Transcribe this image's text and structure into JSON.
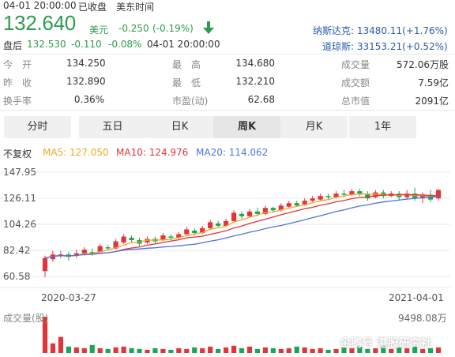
{
  "header": {
    "datetime": "04-01 20:00:00",
    "status": "已收盘",
    "timezone": "美东时间",
    "price": "132.640",
    "currency": "美元",
    "change": "-0.250",
    "change_pct": "(-0.19%)",
    "after_label": "盘后",
    "after_price": "132.530",
    "after_change": "-0.110",
    "after_pct": "-0.08%",
    "after_time": "04-01 20:00:00"
  },
  "indices": [
    {
      "name": "纳斯达克:",
      "value": "13480.11(+1.76%)"
    },
    {
      "name": "道琼斯:",
      "value": "33153.21(+0.52%)"
    }
  ],
  "stats": [
    [
      {
        "label": "今　开",
        "value": "134.250",
        "color": "red"
      },
      {
        "label": "最　高",
        "value": "134.680",
        "color": "red"
      },
      {
        "label": "成交量",
        "value": "572.06万股",
        "color": "normal"
      }
    ],
    [
      {
        "label": "昨　收",
        "value": "132.890",
        "color": "normal"
      },
      {
        "label": "最　低",
        "value": "132.210",
        "color": "green"
      },
      {
        "label": "成交额",
        "value": "7.59亿",
        "color": "normal"
      }
    ],
    [
      {
        "label": "换手率",
        "value": "0.36%",
        "color": "normal"
      },
      {
        "label": "市盈(动)",
        "value": "62.68",
        "color": "normal"
      },
      {
        "label": "总市值",
        "value": "2091亿",
        "color": "normal"
      }
    ]
  ],
  "tabs": [
    {
      "label": "分时",
      "active": false
    },
    {
      "label": "五日",
      "active": false
    },
    {
      "label": "日K",
      "active": false
    },
    {
      "label": "周K",
      "active": true
    },
    {
      "label": "月K",
      "active": false
    },
    {
      "label": "1年",
      "active": false
    }
  ],
  "ma_legend": {
    "adjust": "不复权",
    "ma5": "MA5: 127.050",
    "ma10": "MA10: 124.976",
    "ma20": "MA20: 114.062"
  },
  "colors": {
    "up": "#e2353b",
    "down": "#1aa55a",
    "ma5": "#f5a623",
    "ma10": "#e2353b",
    "ma20": "#4f74e3",
    "price": "#2e9c4c",
    "index": "#2a5caa"
  },
  "volume_label": "成交量(股)",
  "volume_max": "9498.08万",
  "watermark": "企鹅号 港股研究社",
  "chart_data": {
    "type": "candlestick",
    "x_start": "2020-03-27",
    "x_end": "2021-04-01",
    "yticks": [
      "147.95",
      "126.11",
      "104.26",
      "82.42",
      "60.58"
    ],
    "ylim": [
      60.58,
      147.95
    ],
    "candles": [
      [
        65,
        76,
        60,
        78
      ],
      [
        75,
        79,
        73,
        82
      ],
      [
        78,
        79,
        76,
        82
      ],
      [
        79,
        77,
        74,
        81
      ],
      [
        78,
        80,
        76,
        83
      ],
      [
        80,
        83,
        78,
        85
      ],
      [
        81,
        80,
        78,
        84
      ],
      [
        81,
        86,
        80,
        88
      ],
      [
        85,
        84,
        82,
        87
      ],
      [
        84,
        90,
        83,
        92
      ],
      [
        89,
        94,
        88,
        96
      ],
      [
        93,
        91,
        89,
        95
      ],
      [
        91,
        88,
        86,
        93
      ],
      [
        89,
        92,
        88,
        94
      ],
      [
        92,
        90,
        88,
        94
      ],
      [
        91,
        95,
        90,
        97
      ],
      [
        94,
        93,
        91,
        96
      ],
      [
        93,
        96,
        92,
        98
      ],
      [
        96,
        100,
        95,
        102
      ],
      [
        99,
        97,
        95,
        101
      ],
      [
        97,
        101,
        96,
        103
      ],
      [
        101,
        106,
        100,
        108
      ],
      [
        105,
        103,
        101,
        107
      ],
      [
        103,
        107,
        102,
        109
      ],
      [
        107,
        114,
        106,
        116
      ],
      [
        113,
        111,
        109,
        115
      ],
      [
        111,
        115,
        110,
        117
      ],
      [
        115,
        113,
        111,
        118
      ],
      [
        113,
        118,
        112,
        120
      ],
      [
        118,
        116,
        114,
        119
      ],
      [
        116,
        120,
        115,
        122
      ],
      [
        119,
        122,
        118,
        124
      ],
      [
        122,
        120,
        119,
        124
      ],
      [
        121,
        124,
        120,
        126
      ],
      [
        124,
        126,
        123,
        128
      ],
      [
        125,
        128,
        124,
        130
      ],
      [
        128,
        127,
        125,
        130
      ],
      [
        127,
        130,
        126,
        132
      ],
      [
        130,
        129,
        127,
        133
      ],
      [
        129,
        132,
        128,
        134
      ],
      [
        132,
        130,
        128,
        134
      ],
      [
        130,
        126,
        124,
        132
      ],
      [
        127,
        131,
        126,
        133
      ],
      [
        131,
        128,
        126,
        133
      ],
      [
        128,
        130,
        127,
        132
      ],
      [
        130,
        127,
        125,
        132
      ],
      [
        127,
        130,
        125,
        133
      ],
      [
        130,
        126,
        124,
        135
      ],
      [
        126,
        129,
        122,
        131
      ],
      [
        129,
        125,
        123,
        133
      ],
      [
        126,
        133,
        124,
        134
      ]
    ],
    "volumes": [
      45,
      12,
      20,
      8,
      7,
      6,
      10,
      6,
      5,
      7,
      8,
      6,
      5,
      4,
      6,
      5,
      4,
      6,
      5,
      7,
      6,
      8,
      5,
      7,
      9,
      6,
      8,
      5,
      7,
      6,
      5,
      6,
      8,
      7,
      5,
      6,
      4,
      5,
      7,
      6,
      8,
      5,
      6,
      9,
      5,
      7,
      6,
      8,
      5,
      6,
      7
    ]
  }
}
